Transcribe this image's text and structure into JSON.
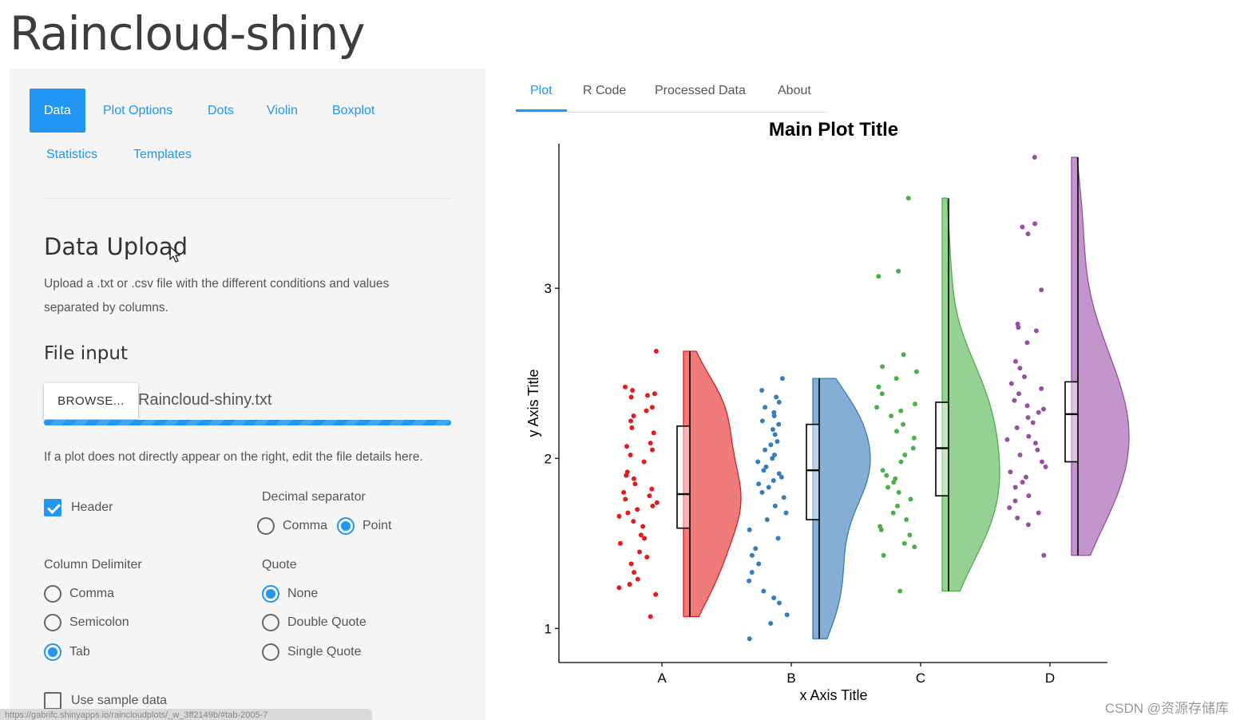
{
  "app": {
    "title": "Raincloud-shiny"
  },
  "sidebar": {
    "tabs": [
      {
        "label": "Data",
        "active": true
      },
      {
        "label": "Plot Options",
        "active": false
      },
      {
        "label": "Dots",
        "active": false
      },
      {
        "label": "Violin",
        "active": false
      },
      {
        "label": "Boxplot",
        "active": false
      },
      {
        "label": "Statistics",
        "active": false
      },
      {
        "label": "Templates",
        "active": false
      }
    ],
    "upload_heading": "Data Upload",
    "upload_text": "Upload a .txt or .csv file with the different conditions and values separated by columns.",
    "file_input_heading": "File input",
    "browse_label": "BROWSE...",
    "file_name": "Raincloud-shiny.txt",
    "upload_progress_pct": 100,
    "hint_text": "If a plot does not directly appear on the right, edit the file details here.",
    "header_label": "Header",
    "header_checked": true,
    "decimal_label": "Decimal separator",
    "decimal_options": [
      "Comma",
      "Point"
    ],
    "decimal_selected": "Point",
    "delimiter_label": "Column Delimiter",
    "delimiter_options": [
      "Comma",
      "Semicolon",
      "Tab"
    ],
    "delimiter_selected": "Tab",
    "quote_label": "Quote",
    "quote_options": [
      "None",
      "Double Quote",
      "Single Quote"
    ],
    "quote_selected": "None",
    "sample_label": "Use sample data",
    "sample_checked": false,
    "status_url": "https://gabrifc.shinyapps.io/raincloudplots/_w_3ff2149b/#tab-2005-7"
  },
  "main": {
    "tabs": [
      {
        "label": "Plot",
        "active": true
      },
      {
        "label": "R Code",
        "active": false
      },
      {
        "label": "Processed Data",
        "active": false
      },
      {
        "label": "About",
        "active": false
      }
    ]
  },
  "colors": {
    "accent": "#2196f3",
    "A": "#e41a1c",
    "B": "#377eb8",
    "C": "#4daf4a",
    "D": "#984ea3",
    "A_fill": "#f07474",
    "B_fill": "#7fa9d2",
    "C_fill": "#8fcf8c",
    "D_fill": "#c18ec9"
  },
  "chart_data": {
    "type": "raincloud",
    "title": "Main Plot Title",
    "xlabel": "x Axis Title",
    "ylabel": "y Axis Title",
    "categories": [
      "A",
      "B",
      "C",
      "D"
    ],
    "yticks": [
      1,
      2,
      3
    ],
    "ylim": [
      0.8,
      3.85
    ],
    "series": [
      {
        "name": "A",
        "min": 1.07,
        "q1": 1.59,
        "median": 1.79,
        "q3": 2.19,
        "max": 2.63,
        "points": [
          2.63,
          2.42,
          2.4,
          2.38,
          2.37,
          2.36,
          2.3,
          2.28,
          2.25,
          2.22,
          2.18,
          2.15,
          2.09,
          2.07,
          2.05,
          2.02,
          1.98,
          1.92,
          1.9,
          1.88,
          1.85,
          1.82,
          1.8,
          1.78,
          1.76,
          1.74,
          1.72,
          1.7,
          1.68,
          1.66,
          1.63,
          1.6,
          1.55,
          1.53,
          1.5,
          1.45,
          1.42,
          1.38,
          1.33,
          1.29,
          1.26,
          1.24,
          1.2,
          1.07
        ]
      },
      {
        "name": "B",
        "min": 0.94,
        "q1": 1.64,
        "median": 1.93,
        "q3": 2.2,
        "max": 2.47,
        "points": [
          2.47,
          2.4,
          2.36,
          2.33,
          2.3,
          2.27,
          2.25,
          2.22,
          2.2,
          2.17,
          2.14,
          2.1,
          2.08,
          2.05,
          2.02,
          2.0,
          1.98,
          1.95,
          1.93,
          1.91,
          1.89,
          1.87,
          1.85,
          1.83,
          1.8,
          1.77,
          1.72,
          1.68,
          1.64,
          1.58,
          1.53,
          1.47,
          1.43,
          1.38,
          1.33,
          1.28,
          1.22,
          1.18,
          1.15,
          1.08,
          1.03,
          0.94
        ]
      },
      {
        "name": "C",
        "min": 1.22,
        "q1": 1.78,
        "median": 2.06,
        "q3": 2.33,
        "max": 3.53,
        "points": [
          3.53,
          3.1,
          3.07,
          2.61,
          2.54,
          2.51,
          2.47,
          2.42,
          2.38,
          2.32,
          2.3,
          2.28,
          2.25,
          2.2,
          2.16,
          2.12,
          2.06,
          2.02,
          1.98,
          1.93,
          1.9,
          1.88,
          1.86,
          1.83,
          1.8,
          1.76,
          1.72,
          1.68,
          1.64,
          1.6,
          1.58,
          1.55,
          1.5,
          1.48,
          1.43,
          1.22
        ]
      },
      {
        "name": "D",
        "min": 1.43,
        "q1": 1.98,
        "median": 2.26,
        "q3": 2.45,
        "max": 3.77,
        "points": [
          3.77,
          3.38,
          3.36,
          3.32,
          2.99,
          2.79,
          2.77,
          2.75,
          2.68,
          2.57,
          2.53,
          2.48,
          2.44,
          2.41,
          2.38,
          2.34,
          2.31,
          2.29,
          2.27,
          2.24,
          2.21,
          2.18,
          2.13,
          2.11,
          2.09,
          2.05,
          2.02,
          1.98,
          1.95,
          1.92,
          1.89,
          1.86,
          1.83,
          1.78,
          1.75,
          1.71,
          1.68,
          1.65,
          1.61,
          1.43
        ]
      }
    ]
  },
  "watermark": "CSDN @资源存储库"
}
